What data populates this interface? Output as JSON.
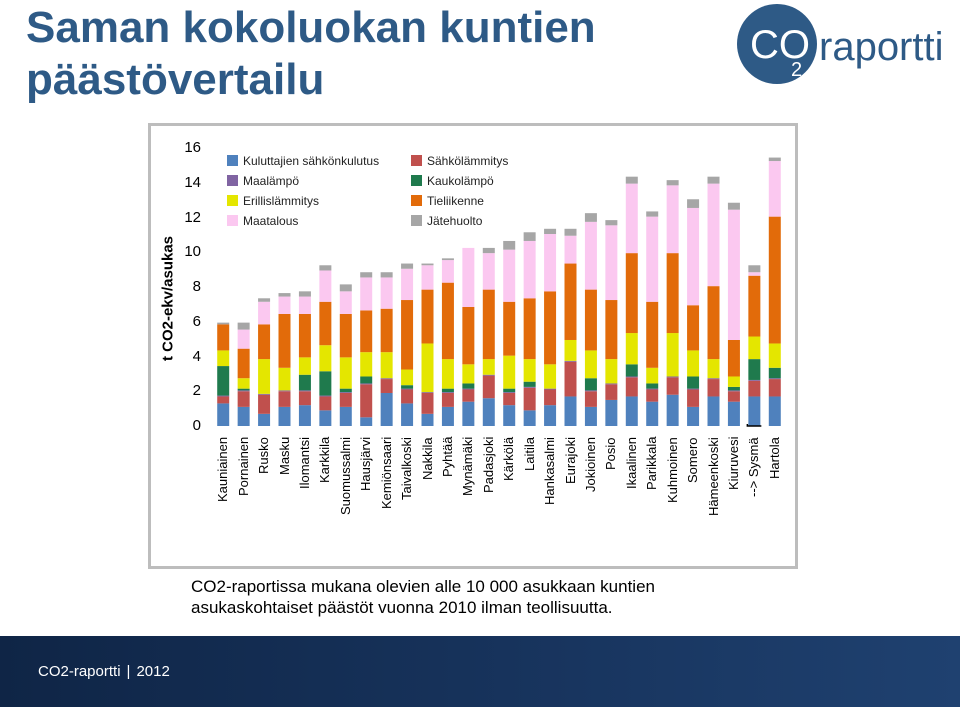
{
  "slide": {
    "title": "Saman kokoluokan kuntien päästövertailu",
    "caption_line1": "CO2-raportissa mukana olevien alle 10 000 asukkaan kuntien",
    "caption_line2": "asukaskohtaiset päästöt vuonna 2010 ilman teollisuutta.",
    "footer_left": "CO2-raportti",
    "footer_sep": "|",
    "footer_year": "2012",
    "logo_text_co": "CO",
    "logo_text_sub": "2",
    "logo_text_rest": "raportti"
  },
  "colors": {
    "title": "#2e5a86",
    "logo_circle": "#2e5a86",
    "footer": "#18355f"
  },
  "chart_data": {
    "type": "bar",
    "stacked": true,
    "ylabel": "t CO2-ekv/asukas",
    "ylim": [
      0,
      16
    ],
    "yticks": [
      0,
      2,
      4,
      6,
      8,
      10,
      12,
      14,
      16
    ],
    "grid": false,
    "legend_position": "top-left",
    "categories": [
      "Kauniainen",
      "Pornainen",
      "Rusko",
      "Masku",
      "Ilomantsi",
      "Karkkila",
      "Suomussalmi",
      "Hausjärvi",
      "Kemiönsaari",
      "Taivalkoski",
      "Nakkila",
      "Pyhtää",
      "Mynämäki",
      "Padasjoki",
      "Kärkölä",
      "Laitila",
      "Hankasalmi",
      "Eurajoki",
      "Jokioinen",
      "Posio",
      "Ikaalinen",
      "Parikkala",
      "Kuhmoinen",
      "Somero",
      "Hämeenkoski",
      "Kiuruvesi",
      "--> Sysmä",
      "Hartola"
    ],
    "highlight_category": "--> Sysmä",
    "series": [
      {
        "name": "Kuluttajien sähkönkulutus",
        "color": "#4f81bd",
        "values": [
          1.3,
          1.1,
          0.7,
          1.1,
          1.2,
          0.9,
          1.1,
          0.5,
          1.9,
          1.3,
          0.7,
          1.1,
          1.4,
          1.6,
          1.2,
          0.9,
          1.2,
          1.7,
          1.1,
          1.5,
          1.7,
          1.4,
          1.8,
          1.1,
          1.7,
          1.4,
          1.7,
          1.7
        ]
      },
      {
        "name": "Sähkölämmitys",
        "color": "#c0504d",
        "values": [
          0.4,
          0.9,
          1.1,
          0.9,
          0.8,
          0.8,
          0.8,
          1.9,
          0.8,
          0.8,
          1.2,
          0.8,
          0.7,
          1.3,
          0.7,
          1.3,
          0.9,
          2.0,
          0.9,
          0.9,
          1.1,
          0.7,
          1.0,
          1.0,
          1.0,
          0.6,
          0.9,
          1.0
        ]
      },
      {
        "name": "Maalämpö",
        "color": "#8064a2",
        "values": [
          0.05,
          0.05,
          0.05,
          0.05,
          0.05,
          0.05,
          0.05,
          0.05,
          0.05,
          0.05,
          0.05,
          0.05,
          0.05,
          0.05,
          0.05,
          0.05,
          0.05,
          0.05,
          0.05,
          0.05,
          0.05,
          0.05,
          0.05,
          0.05,
          0.05,
          0.05,
          0.05,
          0.05
        ]
      },
      {
        "name": "Kaukolämpö",
        "color": "#1f7a4d",
        "values": [
          1.7,
          0.1,
          0.0,
          0.0,
          0.9,
          1.4,
          0.2,
          0.4,
          0.0,
          0.2,
          0.0,
          0.2,
          0.3,
          0.0,
          0.2,
          0.3,
          0.0,
          0.0,
          0.7,
          0.0,
          0.7,
          0.3,
          0.0,
          0.7,
          0.0,
          0.2,
          1.2,
          0.6
        ]
      },
      {
        "name": "Erillislämmitys",
        "color": "#e4e600",
        "values": [
          0.9,
          0.6,
          2.0,
          1.3,
          1.0,
          1.5,
          1.8,
          1.4,
          1.5,
          0.9,
          2.8,
          1.7,
          1.1,
          0.9,
          1.9,
          1.3,
          1.4,
          1.2,
          1.6,
          1.4,
          1.8,
          0.9,
          2.5,
          1.5,
          1.1,
          0.6,
          1.3,
          1.4
        ]
      },
      {
        "name": "Tieliikenne",
        "color": "#e26b0a",
        "values": [
          1.5,
          1.7,
          2.0,
          3.1,
          2.5,
          2.5,
          2.5,
          2.4,
          2.5,
          4.0,
          3.1,
          4.4,
          3.3,
          4.0,
          3.1,
          3.5,
          4.2,
          4.4,
          3.5,
          3.4,
          4.6,
          3.8,
          4.6,
          2.6,
          4.2,
          2.1,
          3.5,
          7.3
        ]
      },
      {
        "name": "Maatalous",
        "color": "#fbc8f0",
        "values": [
          0.0,
          1.1,
          1.3,
          1.0,
          1.0,
          1.8,
          1.3,
          1.9,
          1.8,
          1.8,
          1.4,
          1.3,
          3.4,
          2.1,
          3.0,
          3.3,
          3.3,
          1.6,
          3.9,
          4.3,
          4.0,
          4.9,
          3.9,
          5.6,
          5.9,
          7.5,
          0.2,
          3.2
        ]
      },
      {
        "name": "Jätehuolto",
        "color": "#a6a6a6",
        "values": [
          0.1,
          0.4,
          0.2,
          0.2,
          0.3,
          0.3,
          0.4,
          0.3,
          0.3,
          0.3,
          0.1,
          0.1,
          0.0,
          0.3,
          0.5,
          0.5,
          0.3,
          0.4,
          0.5,
          0.3,
          0.4,
          0.3,
          0.3,
          0.5,
          0.4,
          0.4,
          0.4,
          0.2
        ]
      }
    ]
  }
}
